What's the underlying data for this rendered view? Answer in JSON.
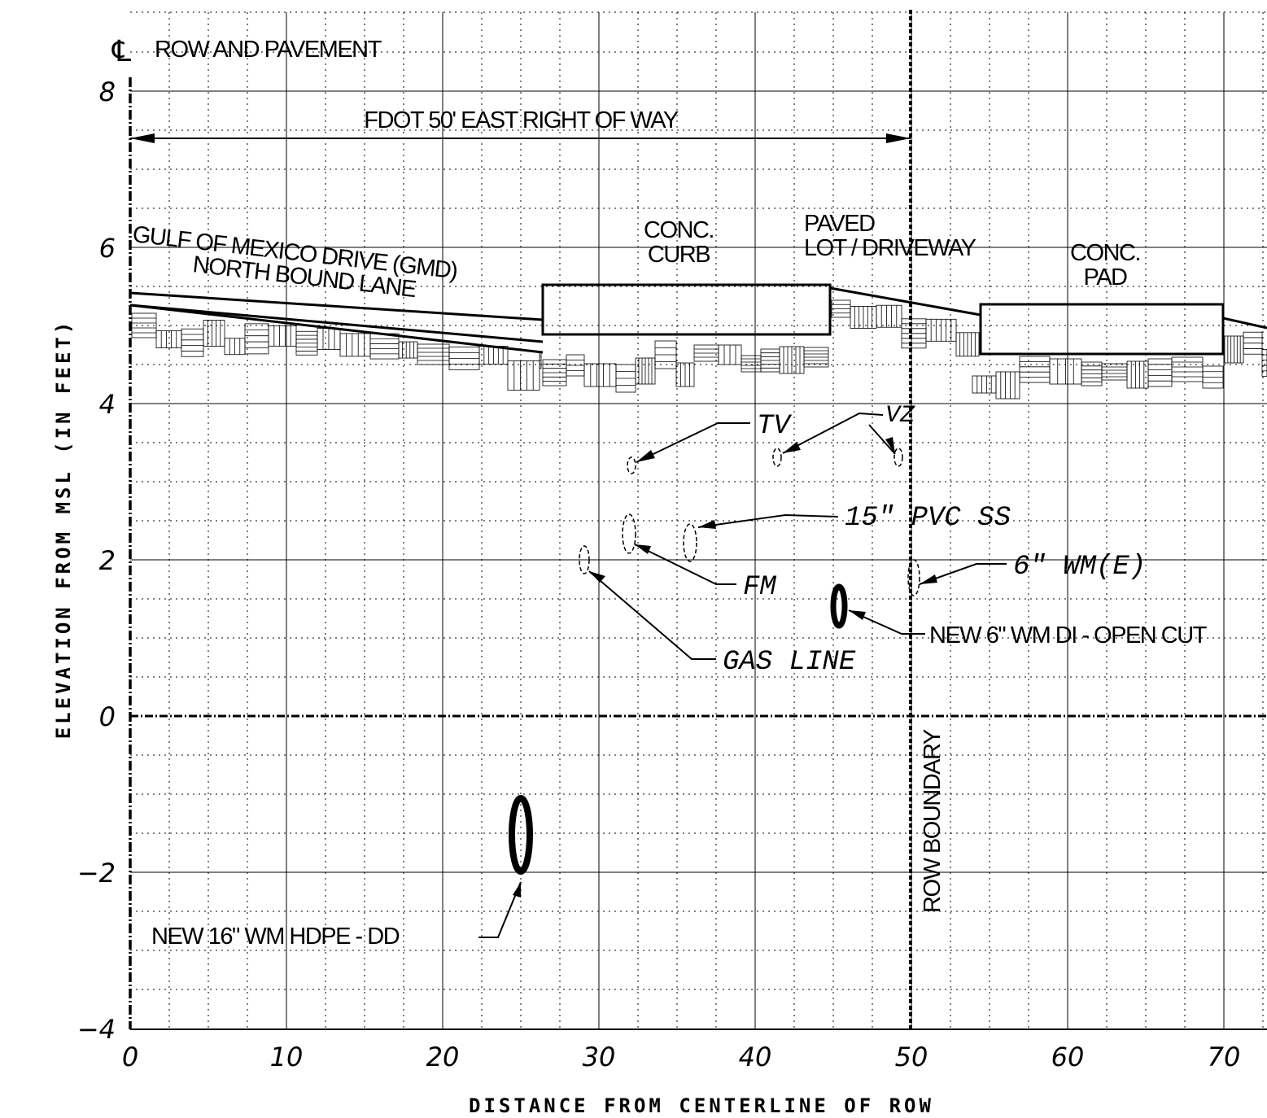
{
  "chart_data": {
    "type": "diagram",
    "xlabel": "DISTANCE FROM CENTERLINE OF ROW",
    "ylabel": "ELEVATION FROM MSL (IN FEET)",
    "x_ticks": [
      "0",
      "10",
      "20",
      "30",
      "40",
      "50",
      "60",
      "70"
    ],
    "y_ticks": [
      "8",
      "6",
      "4",
      "2",
      "0",
      "−2",
      "−4"
    ],
    "xlim": [
      0,
      73
    ],
    "ylim": [
      -4,
      8.6
    ],
    "grid": true,
    "centerline_symbol": "℄",
    "centerline_label": "ROW AND PAVEMENT",
    "row_dimension_label": "FDOT 50' EAST RIGHT OF WAY",
    "row_boundary_x": 50,
    "row_boundary_label": "ROW BOUNDARY",
    "surface_labels": [
      {
        "id": "gmd",
        "lines": [
          "GULF OF MEXICO DRIVE (GMD)",
          "NORTH BOUND LANE"
        ]
      },
      {
        "id": "curb",
        "lines": [
          "CONC.",
          "CURB"
        ]
      },
      {
        "id": "lot",
        "lines": [
          "PAVED",
          "LOT / DRIVEWAY"
        ]
      },
      {
        "id": "pad",
        "lines": [
          "CONC.",
          "PAD"
        ]
      }
    ],
    "utilities": [
      {
        "label": "TV",
        "x": 32,
        "y": 3.2,
        "type": "existing"
      },
      {
        "label": "VZ",
        "x": 41.5,
        "y": 3.3,
        "type": "existing"
      },
      {
        "label": "VZ",
        "x": 49.2,
        "y": 3.3,
        "type": "existing"
      },
      {
        "label": "15\" PVC SS",
        "x": 36,
        "y": 2.2,
        "type": "existing"
      },
      {
        "label": "FM",
        "x": 32,
        "y": 2.3,
        "type": "existing"
      },
      {
        "label": "GAS LINE",
        "x": 29.2,
        "y": 1.9,
        "type": "existing"
      },
      {
        "label": "6\" WM(E)",
        "x": 50.2,
        "y": 1.7,
        "type": "existing"
      },
      {
        "label": "NEW 6\" WM DI - OPEN CUT",
        "x": 45.6,
        "y": 1.4,
        "type": "proposed"
      },
      {
        "label": "NEW 16\" WM HDPE - DD",
        "x": 25.1,
        "y": -1.6,
        "type": "proposed"
      }
    ],
    "surfaces": [
      {
        "name": "GMD pavement",
        "from": [
          0,
          5.4
        ],
        "to": [
          26.3,
          4.7
        ]
      },
      {
        "name": "concrete curb",
        "x_range": [
          26.3,
          45.2
        ],
        "y_range": [
          4.9,
          5.55
        ]
      },
      {
        "name": "paved lot",
        "from": [
          45.2,
          5.5
        ],
        "to": [
          54.3,
          5.15
        ]
      },
      {
        "name": "concrete pad",
        "x_range": [
          54.3,
          69.8
        ],
        "y_range": [
          4.65,
          5.3
        ]
      }
    ]
  },
  "labels": {
    "tv": "TV",
    "vz": "VZ",
    "pvc": "15\" PVC SS",
    "fm": "FM",
    "gas": "GAS LINE",
    "wme": "6\" WM(E)",
    "new6": "NEW 6\" WM DI - OPEN CUT",
    "new16": "NEW 16\" WM HDPE - DD"
  }
}
